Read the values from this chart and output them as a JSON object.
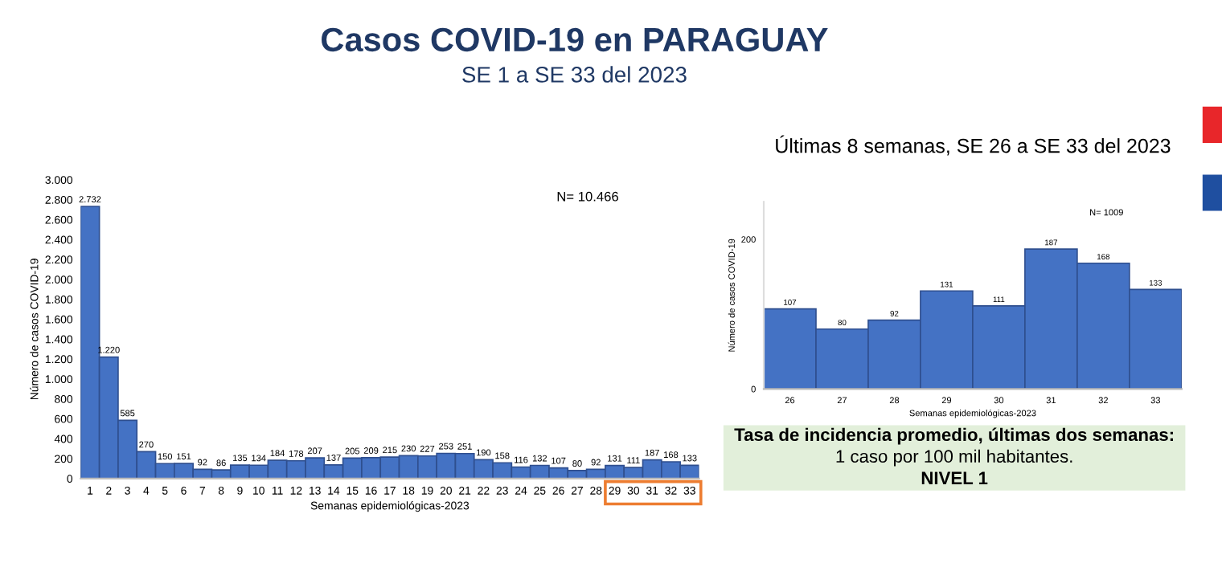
{
  "chart_data": [
    {
      "type": "bar",
      "title": "Casos COVID-19 en PARAGUAY",
      "subtitle": "SE 1 a SE 33 del 2023",
      "xlabel": "Semanas epidemiológicas-2023",
      "ylabel": "Número de casos COVID-19",
      "categories": [
        "1",
        "2",
        "3",
        "4",
        "5",
        "6",
        "7",
        "8",
        "9",
        "10",
        "11",
        "12",
        "13",
        "14",
        "15",
        "16",
        "17",
        "18",
        "19",
        "20",
        "21",
        "22",
        "23",
        "24",
        "25",
        "26",
        "27",
        "28",
        "29",
        "30",
        "31",
        "32",
        "33"
      ],
      "values": [
        2732,
        1220,
        585,
        270,
        150,
        151,
        92,
        86,
        135,
        134,
        184,
        178,
        207,
        137,
        205,
        209,
        215,
        230,
        227,
        253,
        251,
        190,
        158,
        116,
        132,
        107,
        80,
        92,
        131,
        111,
        187,
        168,
        133
      ],
      "value_labels": [
        "2.732",
        "1.220",
        "585",
        "270",
        "150",
        "151",
        "92",
        "86",
        "135",
        "134",
        "184",
        "178",
        "207",
        "137",
        "205",
        "209",
        "215",
        "230",
        "227",
        "253",
        "251",
        "190",
        "158",
        "116",
        "132",
        "107",
        "80",
        "92",
        "131",
        "111",
        "187",
        "168",
        "133"
      ],
      "color": "#4472c4",
      "ylim": [
        0,
        3000
      ],
      "yticks": [
        0,
        200,
        400,
        600,
        800,
        {
          "value": 1000,
          "label": "1.000"
        },
        {
          "value": 1200,
          "label": "1.200"
        },
        {
          "value": 1400,
          "label": "1.400"
        },
        {
          "value": 1600,
          "label": "1.600"
        },
        {
          "value": 1800,
          "label": "1.800"
        },
        {
          "value": 2000,
          "label": "2.000"
        },
        {
          "value": 2200,
          "label": "2.200"
        },
        {
          "value": 2400,
          "label": "2.400"
        },
        {
          "value": 2600,
          "label": "2.600"
        },
        {
          "value": 2800,
          "label": "2.800"
        },
        {
          "value": 3000,
          "label": "3.000"
        }
      ],
      "annotations": [
        "N= 10.466"
      ],
      "grid": false
    },
    {
      "type": "bar",
      "title": "Últimas 8 semanas, SE 26 a SE 33 del 2023",
      "xlabel": "Semanas epidemiológicas-2023",
      "ylabel": "Número de casos COVID-19",
      "categories": [
        "26",
        "27",
        "28",
        "29",
        "30",
        "31",
        "32",
        "33"
      ],
      "values": [
        107,
        80,
        92,
        131,
        111,
        187,
        168,
        133
      ],
      "data_labels": true,
      "color": "#4472c4",
      "ylim": [
        0,
        250
      ],
      "yticks": [
        0,
        200
      ],
      "annotations": [
        "N= 1009"
      ],
      "grid": false
    },
    {
      "type": "other",
      "annotations": [
        "Tasa de incidencia promedio, últimas dos semanas:",
        "1 caso por 100 mil habitantes.",
        "NIVEL 1"
      ]
    }
  ]
}
